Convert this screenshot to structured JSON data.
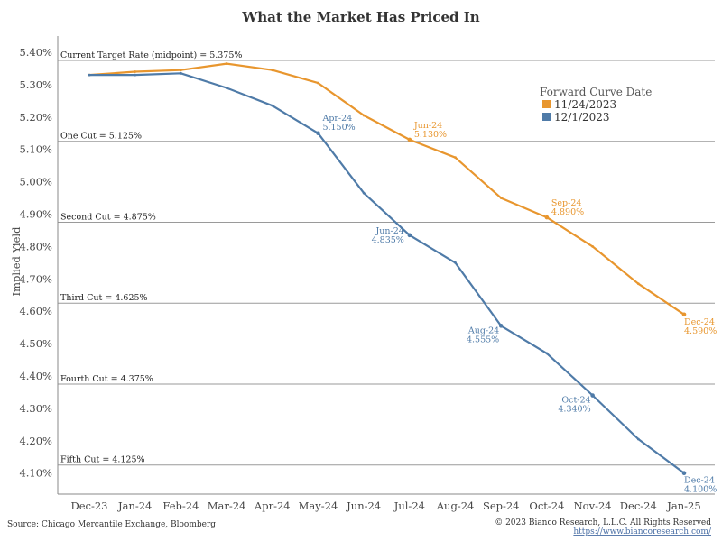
{
  "chart_data": {
    "type": "line",
    "title": "What the Market Has Priced In",
    "xlabel": "",
    "ylabel": "Implied Yield",
    "categories": [
      "Dec-23",
      "Jan-24",
      "Feb-24",
      "Mar-24",
      "Apr-24",
      "May-24",
      "Jun-24",
      "Jul-24",
      "Aug-24",
      "Sep-24",
      "Oct-24",
      "Nov-24",
      "Dec-24",
      "Jan-25"
    ],
    "y_ticks": [
      "5.40%",
      "5.30%",
      "5.20%",
      "5.10%",
      "5.00%",
      "4.90%",
      "4.80%",
      "4.70%",
      "4.60%",
      "4.50%",
      "4.40%",
      "4.30%",
      "4.20%",
      "4.10%"
    ],
    "ylim": [
      4.075,
      5.42
    ],
    "legend": {
      "title": "Forward Curve Date",
      "position": "top-right"
    },
    "series": [
      {
        "name": "11/24/2023",
        "color": "#E8962E",
        "values": [
          5.33,
          5.34,
          5.345,
          5.365,
          5.345,
          5.305,
          5.205,
          5.13,
          5.075,
          4.95,
          4.89,
          4.8,
          4.685,
          4.59
        ]
      },
      {
        "name": "12/1/2023",
        "color": "#4F7BA8",
        "values": [
          5.33,
          5.33,
          5.335,
          5.29,
          5.235,
          5.15,
          4.965,
          4.835,
          4.75,
          4.555,
          4.47,
          4.34,
          4.205,
          4.1
        ]
      }
    ],
    "reference_lines": [
      {
        "value": 5.375,
        "label": "Current Target Rate (midpoint) = 5.375%"
      },
      {
        "value": 5.125,
        "label": "One Cut = 5.125%"
      },
      {
        "value": 4.875,
        "label": "Second Cut = 4.875%"
      },
      {
        "value": 4.625,
        "label": "Third Cut = 4.625%"
      },
      {
        "value": 4.375,
        "label": "Fourth Cut = 4.375%"
      },
      {
        "value": 4.125,
        "label": "Fifth Cut = 4.125%"
      }
    ],
    "annotations": [
      {
        "series": 1,
        "index": 5,
        "month": "Apr-24",
        "value": "5.150%",
        "align": "right"
      },
      {
        "series": 0,
        "index": 7,
        "month": "Jun-24",
        "value": "5.130%",
        "align": "above"
      },
      {
        "series": 0,
        "index": 10,
        "month": "Sep-24",
        "value": "4.890%",
        "align": "above"
      },
      {
        "series": 1,
        "index": 7,
        "month": "Jun-24",
        "value": "4.835%",
        "align": "left"
      },
      {
        "series": 1,
        "index": 9,
        "month": "Aug-24",
        "value": "4.555%",
        "align": "below-left"
      },
      {
        "series": 0,
        "index": 13,
        "month": "Dec-24",
        "value": "4.590%",
        "align": "below"
      },
      {
        "series": 1,
        "index": 11,
        "month": "Oct-24",
        "value": "4.340%",
        "align": "below-left"
      },
      {
        "series": 1,
        "index": 13,
        "month": "Dec-24",
        "value": "4.100%",
        "align": "below"
      }
    ]
  },
  "footer": {
    "source": "Source: Chicago Mercantile Exchange, Bloomberg",
    "copyright": "© 2023 Bianco Research, L.L.C. All Rights Reserved",
    "url": "https://www.biancoresearch.com/"
  }
}
